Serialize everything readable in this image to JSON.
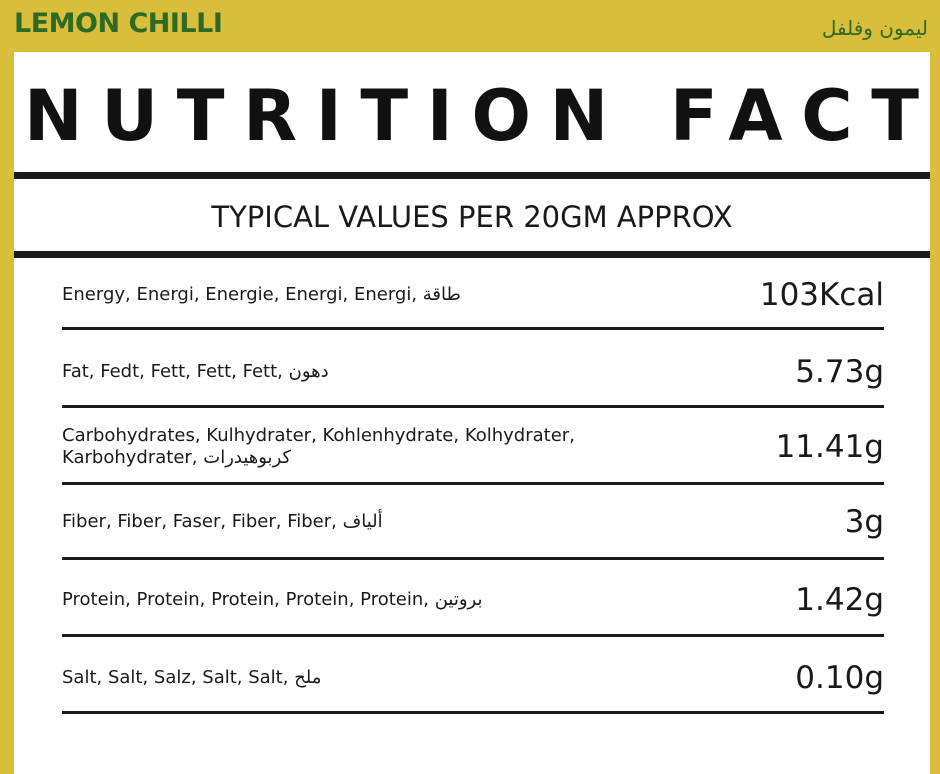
{
  "header": {
    "product": "LEMON CHILLI",
    "product_arabic": "ليمون وفلفل"
  },
  "title": "NUTRITION FACT",
  "subtitle": "TYPICAL VALUES PER 20GM APPROX",
  "rows": [
    {
      "label": "Energy, Energi, Energie, Energi, Energi, طاقة",
      "value": "103Kcal"
    },
    {
      "label": "Fat, Fedt, Fett, Fett, Fett, دهون",
      "value": "5.73g"
    },
    {
      "label": "Carbohydrates, Kulhydrater, Kohlenhydrate, Kolhydrater, Karbohydrater, كربوهيدرات",
      "value": "11.41g"
    },
    {
      "label": "Fiber, Fiber, Faser, Fiber, Fiber, ألياف",
      "value": "3g"
    },
    {
      "label": "Protein, Protein, Protein, Protein, Protein, بروتين",
      "value": "1.42g"
    },
    {
      "label": "Salt, Salt, Salz, Salt, Salt, ملح",
      "value": "0.10g"
    }
  ]
}
